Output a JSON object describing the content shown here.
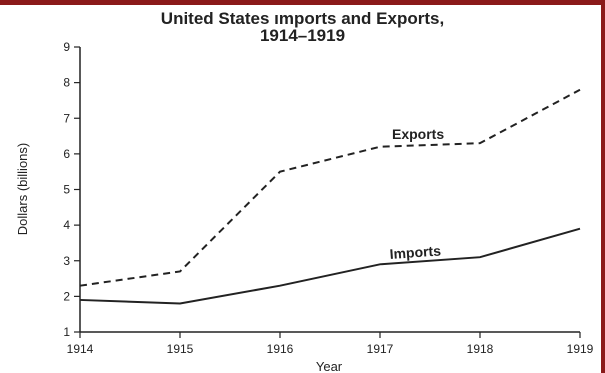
{
  "chart_data": {
    "type": "line",
    "title_line1": "United States ımports and Exports,",
    "title_line2": "1914–1919",
    "xlabel": "Year",
    "ylabel": "Dollars (billions)",
    "categories": [
      "1914",
      "1915",
      "1916",
      "1917",
      "1918",
      "1919"
    ],
    "x": [
      1914,
      1915,
      1916,
      1917,
      1918,
      1919
    ],
    "ylim": [
      1,
      9
    ],
    "yticks": [
      "1",
      "2",
      "3",
      "4",
      "5",
      "6",
      "7",
      "8",
      "9"
    ],
    "grid": false,
    "series": [
      {
        "name": "Exports",
        "values": [
          2.3,
          2.7,
          5.5,
          6.2,
          6.3,
          7.8
        ],
        "style": "dashed",
        "color": "#222222"
      },
      {
        "name": "Imports",
        "values": [
          1.9,
          1.8,
          2.3,
          2.9,
          3.1,
          3.9
        ],
        "style": "solid",
        "color": "#222222"
      }
    ]
  },
  "colors": {
    "accent_bar": "#8b1a1a"
  }
}
